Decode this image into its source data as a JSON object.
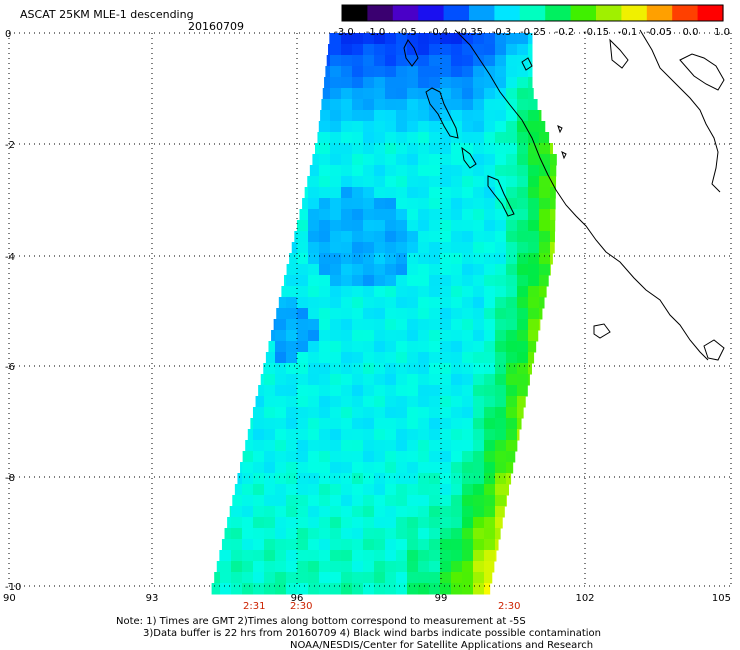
{
  "title": "ASCAT 25KM MLE-1 descending",
  "date": "20160709",
  "colorbar": {
    "labels": [
      "-3.0",
      "-1.0",
      "-0.5",
      "-0.4",
      "-0.35",
      "-0.3",
      "-0.25",
      "-0.2",
      "-0.15",
      "-0.1",
      "-0.05",
      "0.0",
      "1.0"
    ],
    "colors": [
      "#000000",
      "#3a0070",
      "#4a00c8",
      "#1a10f0",
      "#0050ff",
      "#00a0ff",
      "#00e6ff",
      "#00ffc0",
      "#00f060",
      "#40f000",
      "#a0f000",
      "#f0f000",
      "#ffa000",
      "#ff4000",
      "#ff0000"
    ]
  },
  "axes": {
    "x_ticks": [
      "90",
      "93",
      "96",
      "99",
      "102",
      "105"
    ],
    "y_ticks": [
      "0",
      "-2",
      "-4",
      "-6",
      "-8",
      "-10"
    ],
    "lon_range": [
      90,
      105
    ],
    "lat_range": [
      -10,
      0
    ]
  },
  "pass_times": [
    "2:31",
    "2:30",
    "2:30"
  ],
  "notes": [
    "Note: 1) Times are GMT 2)Times along bottom correspond to measurement at -5S",
    "3)Data buffer is 22 hrs from 20160709 4) Black wind barbs indicate possible contamination",
    "NOAA/NESDIS/Center for Satellite Applications and Research"
  ]
}
